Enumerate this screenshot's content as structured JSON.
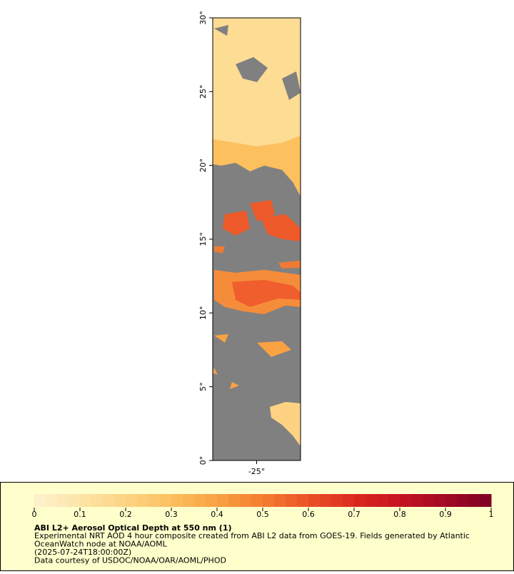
{
  "chart_data": {
    "type": "map",
    "xlim": [
      -28,
      -22
    ],
    "ylim": [
      0,
      30
    ],
    "xticks": [
      {
        "value": -25,
        "label": "-25°"
      }
    ],
    "yticks": [
      {
        "value": 0,
        "label": "0°"
      },
      {
        "value": 5,
        "label": "5°"
      },
      {
        "value": 10,
        "label": "10°"
      },
      {
        "value": 15,
        "label": "15°"
      },
      {
        "value": 20,
        "label": "20°"
      },
      {
        "value": 25,
        "label": "25°"
      },
      {
        "value": 30,
        "label": "30°"
      }
    ],
    "land_color": "#808080",
    "colorbar": {
      "range": [
        0,
        1
      ],
      "ticks": [
        0,
        0.1,
        0.2,
        0.3,
        0.4,
        0.5,
        0.6,
        0.7,
        0.8,
        0.9,
        1
      ],
      "colors": [
        "#fdf2d0",
        "#fde4a8",
        "#fdd383",
        "#fcbf5f",
        "#f9a242",
        "#f47d30",
        "#eb5127",
        "#dc2a20",
        "#c61320",
        "#a20924",
        "#7d0025"
      ]
    },
    "title": "ABI L2+ Aerosol Optical Depth at 550 nm (1)",
    "notes": [
      "Experimental NRT AOD 4 hour composite created from ABI L2 data from GOES-19. Fields generated by Atlantic",
      "OceanWatch node at NOAA/AOML",
      "(2025-07-24T18:00:00Z)",
      "Data courtesy of USDOC/NOAA/OAR/AOML/PHOD"
    ]
  }
}
